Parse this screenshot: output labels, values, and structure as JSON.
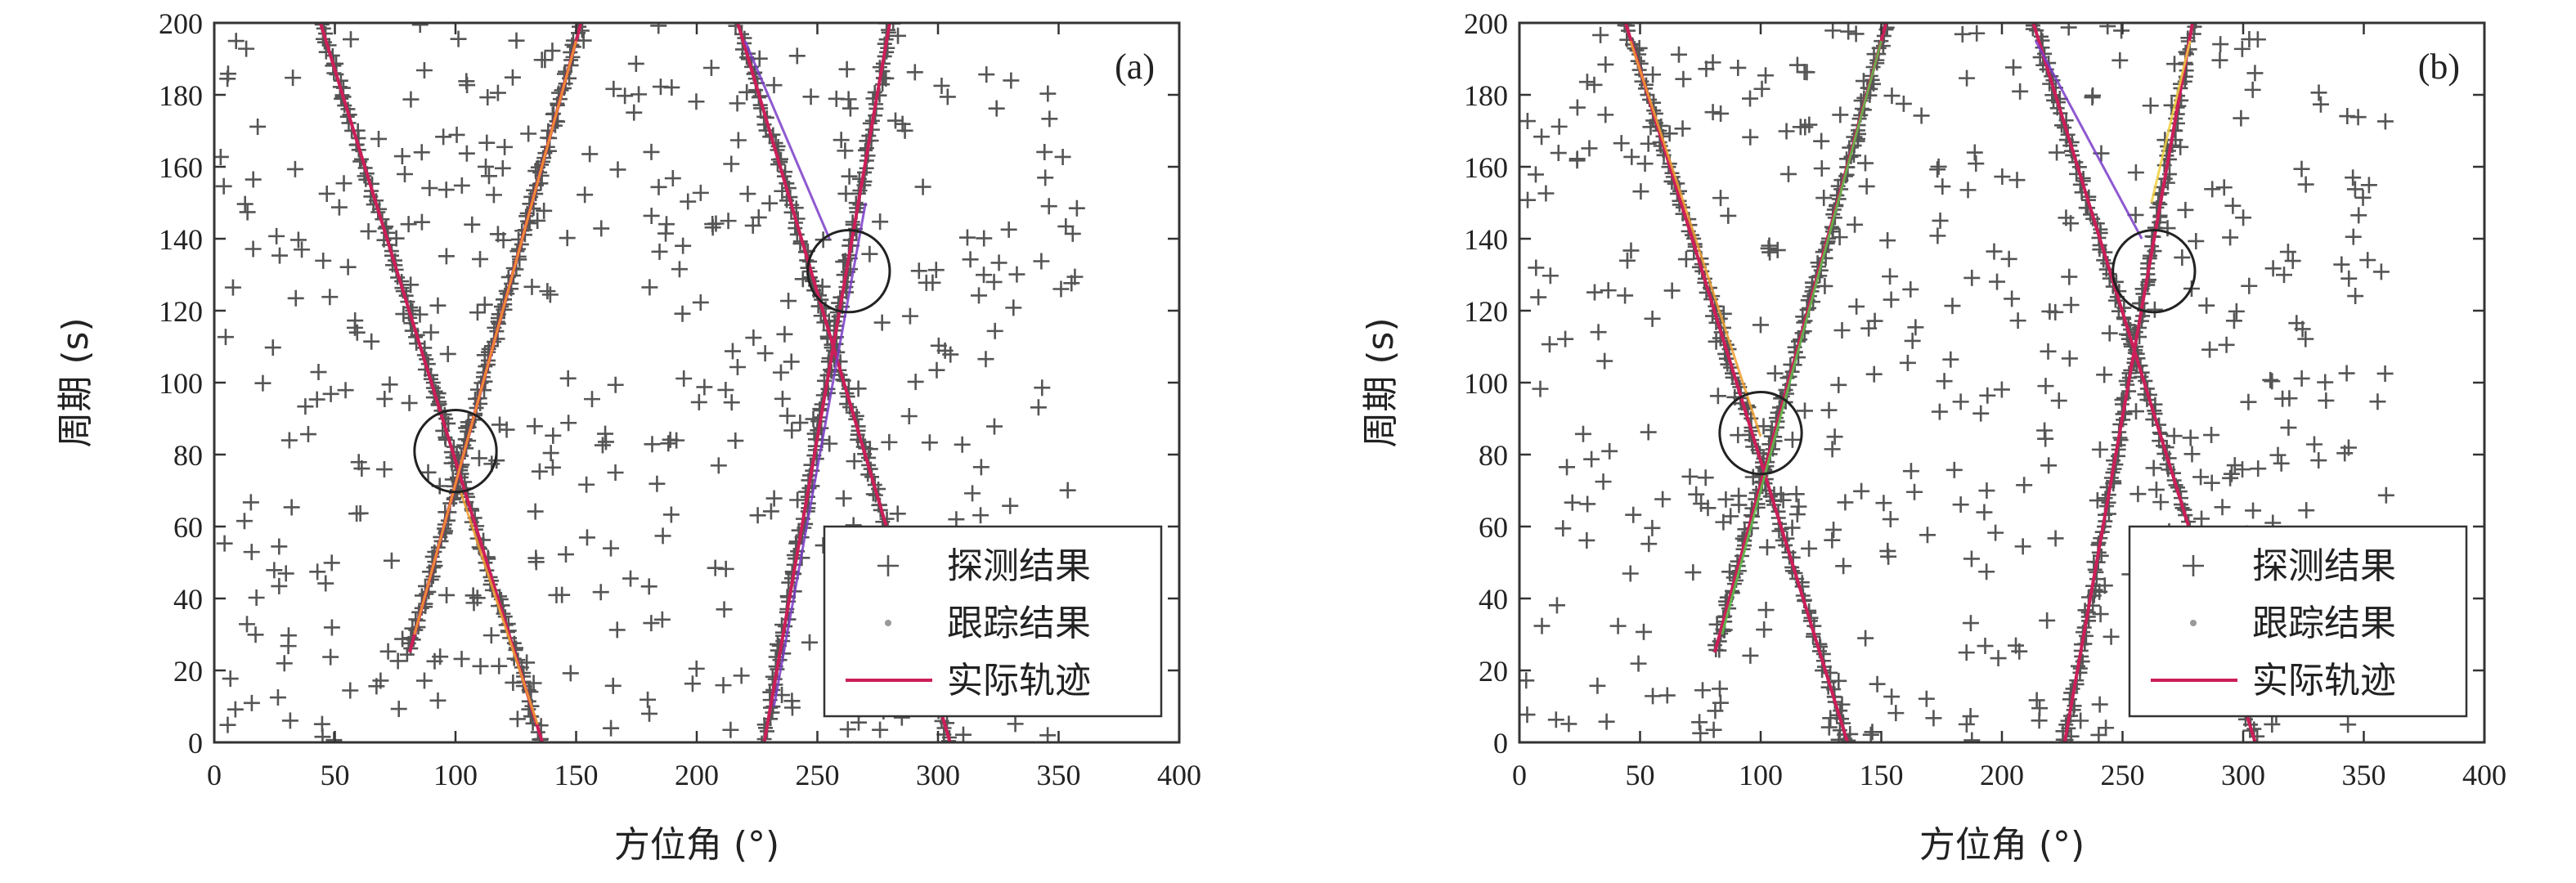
{
  "chart_data": [
    {
      "type": "scatter",
      "panel_label": "(a)",
      "xlabel": "方位角 (°)",
      "ylabel": "周期 (s)",
      "xlim": [
        0,
        400
      ],
      "ylim": [
        0,
        200
      ],
      "xticks": [
        0,
        50,
        100,
        150,
        200,
        250,
        300,
        350,
        400
      ],
      "yticks": [
        0,
        20,
        40,
        60,
        80,
        100,
        120,
        140,
        160,
        180,
        200
      ],
      "legend": {
        "position": "bottom-right",
        "entries": [
          {
            "name": "探测结果",
            "marker": "plus",
            "color": "#555555"
          },
          {
            "name": "跟踪结果",
            "marker": "dot",
            "color": "#999999"
          },
          {
            "name": "实际轨迹",
            "marker": "line",
            "color": "#cc1e5a"
          }
        ]
      },
      "true_tracks": [
        {
          "x": [
            44,
            136
          ],
          "y": [
            200,
            0
          ]
        },
        {
          "x": [
            152,
            81
          ],
          "y": [
            200,
            25
          ]
        },
        {
          "x": [
            217,
            305
          ],
          "y": [
            200,
            0
          ]
        },
        {
          "x": [
            280,
            228
          ],
          "y": [
            200,
            0
          ]
        }
      ],
      "tracked_segments": [
        {
          "color": "#f0a030",
          "x": [
            150,
            83
          ],
          "y": [
            195,
            30
          ]
        },
        {
          "color": "#f0a030",
          "x": [
            102,
            134
          ],
          "y": [
            70,
            5
          ]
        },
        {
          "color": "#7a3cc8",
          "x": [
            220,
            255
          ],
          "y": [
            195,
            140
          ]
        },
        {
          "color": "#7a3cc8",
          "x": [
            270,
            232
          ],
          "y": [
            150,
            10
          ]
        }
      ],
      "circles": [
        {
          "cx": 100,
          "cy": 81,
          "r": 17
        },
        {
          "cx": 263,
          "cy": 131,
          "r": 17
        }
      ]
    },
    {
      "type": "scatter",
      "panel_label": "(b)",
      "xlabel": "方位角 (°)",
      "ylabel": "周期 (s)",
      "xlim": [
        0,
        400
      ],
      "ylim": [
        0,
        200
      ],
      "xticks": [
        0,
        50,
        100,
        150,
        200,
        250,
        300,
        350,
        400
      ],
      "yticks": [
        0,
        20,
        40,
        60,
        80,
        100,
        120,
        140,
        160,
        180,
        200
      ],
      "legend": {
        "position": "bottom-right",
        "entries": [
          {
            "name": "探测结果",
            "marker": "plus",
            "color": "#555555"
          },
          {
            "name": "跟踪结果",
            "marker": "dot",
            "color": "#999999"
          },
          {
            "name": "实际轨迹",
            "marker": "line",
            "color": "#cc1e5a"
          }
        ]
      },
      "true_tracks": [
        {
          "x": [
            44,
            136
          ],
          "y": [
            200,
            0
          ]
        },
        {
          "x": [
            152,
            81
          ],
          "y": [
            200,
            25
          ]
        },
        {
          "x": [
            213,
            305
          ],
          "y": [
            200,
            0
          ]
        },
        {
          "x": [
            279,
            226
          ],
          "y": [
            200,
            0
          ]
        }
      ],
      "tracked_segments": [
        {
          "color": "#5cc24a",
          "x": [
            150,
            84
          ],
          "y": [
            195,
            30
          ]
        },
        {
          "color": "#f0a030",
          "x": [
            46,
            100
          ],
          "y": [
            195,
            85
          ]
        },
        {
          "color": "#7a3cc8",
          "x": [
            214,
            258
          ],
          "y": [
            195,
            140
          ]
        },
        {
          "color": "#f0d040",
          "x": [
            278,
            262
          ],
          "y": [
            195,
            150
          ]
        }
      ],
      "circles": [
        {
          "cx": 100,
          "cy": 86,
          "r": 17
        },
        {
          "cx": 263,
          "cy": 131,
          "r": 17
        }
      ]
    }
  ]
}
